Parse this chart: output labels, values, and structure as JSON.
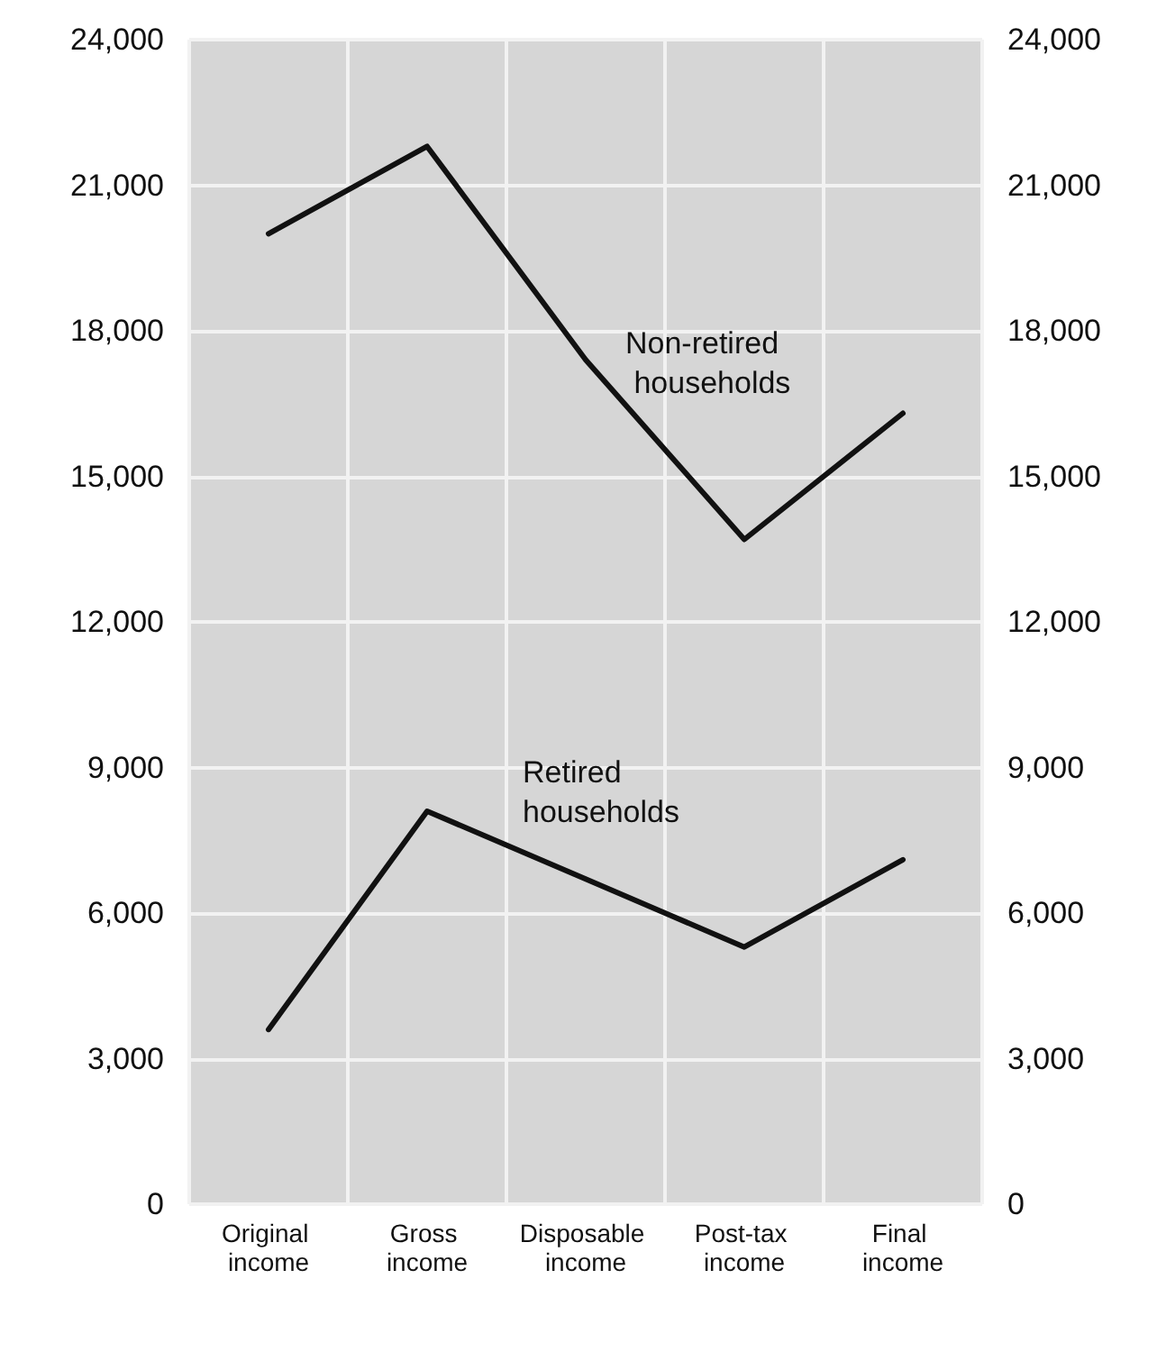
{
  "chart_data": {
    "type": "line",
    "categories": [
      "Original income",
      "Gross income",
      "Disposable income",
      "Post-tax income",
      "Final income"
    ],
    "series": [
      {
        "name": "Non-retired households",
        "color": "#111111",
        "values": [
          20000,
          21800,
          17400,
          13700,
          16300
        ]
      },
      {
        "name": "Retired households",
        "color": "#111111",
        "values": [
          3600,
          8100,
          6700,
          5300,
          7100
        ]
      }
    ],
    "ylim": [
      0,
      24000
    ],
    "yticks": [
      {
        "value": 0,
        "label": "0"
      },
      {
        "value": 3000,
        "label": "3,000"
      },
      {
        "value": 6000,
        "label": "6,000"
      },
      {
        "value": 9000,
        "label": "9,000"
      },
      {
        "value": 12000,
        "label": "12,000"
      },
      {
        "value": 15000,
        "label": "15,000"
      },
      {
        "value": 18000,
        "label": "18,000"
      },
      {
        "value": 21000,
        "label": "21,000"
      },
      {
        "value": 24000,
        "label": "24,000"
      }
    ],
    "y2lim": [
      0,
      24000
    ],
    "y2ticks": [
      {
        "value": 0,
        "label": "0"
      },
      {
        "value": 3000,
        "label": "3,000"
      },
      {
        "value": 6000,
        "label": "6,000"
      },
      {
        "value": 9000,
        "label": "9,000"
      },
      {
        "value": 12000,
        "label": "12,000"
      },
      {
        "value": 15000,
        "label": "15,000"
      },
      {
        "value": 18000,
        "label": "18,000"
      },
      {
        "value": 21000,
        "label": "21,000"
      },
      {
        "value": 24000,
        "label": "24,000"
      }
    ],
    "grid": true,
    "legend": false,
    "marker": "none",
    "line_style": "solid"
  }
}
